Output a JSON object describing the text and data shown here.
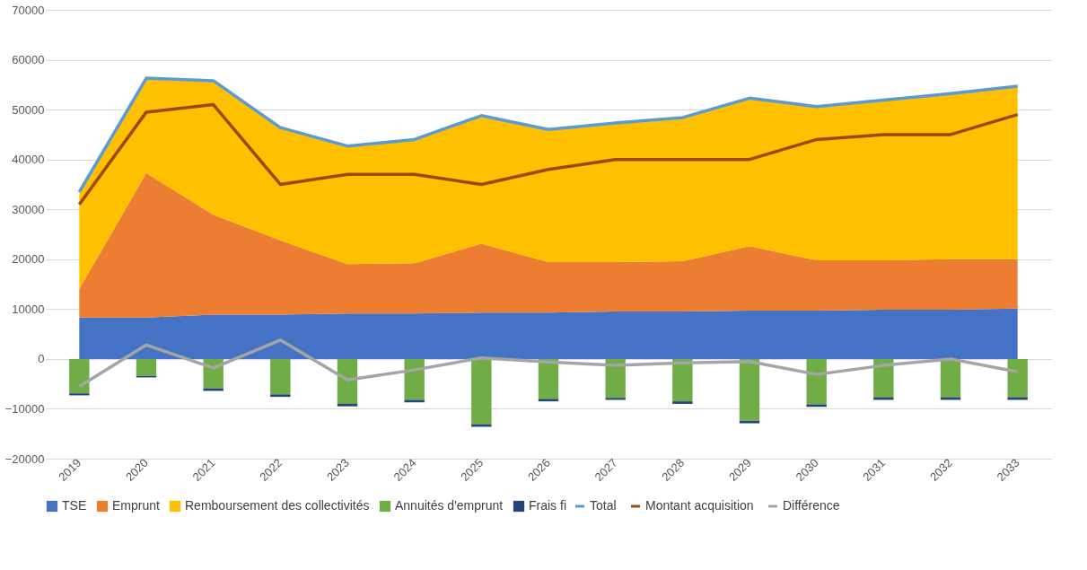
{
  "chart_data": {
    "type": "area",
    "stacked": true,
    "categories": [
      "2019",
      "2020",
      "2021",
      "2022",
      "2023",
      "2024",
      "2025",
      "2026",
      "2027",
      "2028",
      "2029",
      "2030",
      "2031",
      "2032",
      "2033"
    ],
    "series": [
      {
        "name": "TSE",
        "color": "#4472c4",
        "values": [
          8300,
          8300,
          8900,
          8900,
          9100,
          9100,
          9300,
          9300,
          9500,
          9500,
          9700,
          9700,
          9900,
          9900,
          10100
        ]
      },
      {
        "name": "Emprunt",
        "color": "#ed7d31",
        "values": [
          5700,
          29000,
          20000,
          14900,
          9900,
          10100,
          13800,
          10100,
          9900,
          10100,
          12900,
          10100,
          9900,
          10100,
          9900
        ]
      },
      {
        "name": "Remboursement des collectivités",
        "color": "#ffc000",
        "values": [
          19300,
          18900,
          26800,
          22600,
          23600,
          24600,
          25700,
          26500,
          27800,
          28700,
          29600,
          30700,
          32000,
          33100,
          34600
        ]
      },
      {
        "name": "Annuités d'emprunt",
        "type": "bar",
        "color": "#70ad47",
        "values": [
          -6900,
          -3400,
          -5900,
          -7100,
          -9000,
          -8200,
          -13100,
          -8000,
          -7800,
          -8500,
          -12400,
          -9100,
          -7700,
          -7700,
          -7700
        ]
      },
      {
        "name": "Frais fi",
        "type": "bar",
        "color": "#264478",
        "values": [
          -400,
          -300,
          -500,
          -500,
          -500,
          -500,
          -500,
          -500,
          -400,
          -500,
          -500,
          -500,
          -500,
          -500,
          -500
        ]
      },
      {
        "name": "Total",
        "type": "line",
        "color": "#5b9bd5",
        "values": [
          33500,
          56300,
          55800,
          46400,
          42700,
          44000,
          48800,
          46000,
          47300,
          48400,
          52300,
          50600,
          51900,
          53200,
          54700
        ]
      },
      {
        "name": "Montant acquisition",
        "type": "line",
        "color": "#9e480e",
        "values": [
          31000,
          49500,
          51000,
          35000,
          37000,
          37000,
          35000,
          38000,
          40000,
          40000,
          40000,
          44000,
          45000,
          45000,
          49000
        ]
      },
      {
        "name": "Différence",
        "type": "line",
        "color": "#a5a5a5",
        "values": [
          -5500,
          2800,
          -1800,
          3800,
          -4200,
          -2200,
          200,
          -600,
          -1300,
          -800,
          -500,
          -3100,
          -1300,
          0,
          -2600
        ]
      }
    ],
    "ylim": [
      -20000,
      70000
    ],
    "yticks": [
      -20000,
      -10000,
      0,
      10000,
      20000,
      30000,
      40000,
      50000,
      60000,
      70000
    ],
    "grid": "y",
    "legend": "bottom"
  }
}
